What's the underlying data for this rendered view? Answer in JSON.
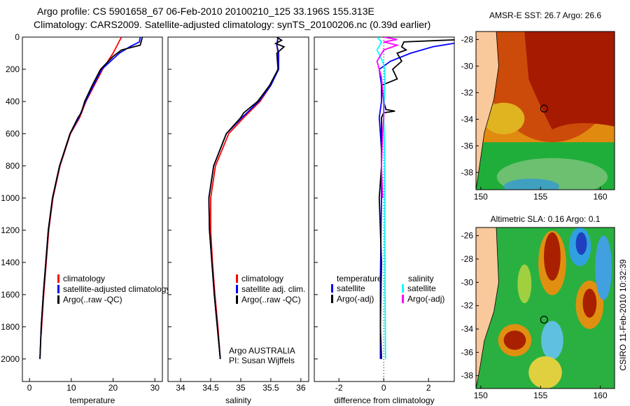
{
  "title_line1": "Argo profile: CS 5901658_67 06-Feb-2010 20100210_125 33.196S 155.313E",
  "title_line2": "Climatology: CARS2009. Satellite-adjusted climatology: synTS_20100206.nc (0.39d earlier)",
  "credit": "CSIRO 11-Feb-2010 10:32:39",
  "colors": {
    "climatology": "#ff0000",
    "satellite": "#0000ff",
    "argo": "#000000",
    "sal_satellite": "#00ffff",
    "sal_argo": "#ff00ff",
    "land": "#f9c89b"
  },
  "chart_data": [
    {
      "type": "line",
      "xlabel": "temperature",
      "ylabel": "",
      "xlim": [
        -1.7,
        31.8
      ],
      "ylim": [
        2140,
        0
      ],
      "xticks": [
        "0",
        "10",
        "20",
        "30"
      ],
      "xtickv": [
        0,
        10,
        20,
        30
      ],
      "yticks": [
        "0",
        "200",
        "400",
        "600",
        "800",
        "1000",
        "1200",
        "1400",
        "1600",
        "1800",
        "2000"
      ],
      "legend": [
        "climatology",
        "satellite-adjusted climatology",
        "Argo(..raw -QC)"
      ],
      "legend_placement": "lower-right",
      "series": [
        {
          "name": "climatology",
          "color": "#ff0000",
          "depth": [
            0,
            50,
            100,
            200,
            300,
            400,
            500,
            600,
            800,
            1000,
            1200,
            1400,
            1600,
            1800,
            1850
          ],
          "values": [
            22,
            21,
            20,
            17.5,
            15.5,
            13.5,
            12,
            9.8,
            7.3,
            5.6,
            4.6,
            4,
            3.4,
            2.9,
            2.8
          ]
        },
        {
          "name": "satellite-adjusted climatology",
          "color": "#0000ff",
          "depth": [
            0,
            30,
            60,
            100,
            200,
            300,
            400,
            500,
            600,
            800,
            1000,
            1200,
            1400,
            1600,
            1800,
            2000
          ],
          "values": [
            26.5,
            26.3,
            24,
            21.5,
            17.3,
            15.3,
            13.4,
            11.8,
            9.7,
            7.2,
            5.5,
            4.5,
            3.9,
            3.3,
            2.8,
            2.5
          ]
        },
        {
          "name": "Argo(..raw -QC)",
          "color": "#000000",
          "depth": [
            0,
            20,
            50,
            80,
            120,
            200,
            300,
            400,
            470,
            500,
            600,
            800,
            1000,
            1200,
            1400,
            1600,
            1800,
            2000
          ],
          "values": [
            27,
            26.8,
            26.5,
            22,
            20,
            17,
            15,
            13.2,
            12.4,
            11.6,
            9.7,
            7.2,
            5.5,
            4.5,
            3.9,
            3.3,
            2.8,
            2.5
          ]
        }
      ]
    },
    {
      "type": "line",
      "xlabel": "salinity",
      "ylabel": "",
      "xlim": [
        33.79,
        36.13
      ],
      "ylim": [
        2140,
        0
      ],
      "xticks": [
        "34",
        "34.5",
        "35",
        "35.5",
        "36"
      ],
      "xtickv": [
        34,
        34.5,
        35,
        35.5,
        36
      ],
      "legend": [
        "climatology",
        "satellite adj. clim.",
        "Argo(..raw -QC)"
      ],
      "legend_placement": "lower-right",
      "annotation": [
        "Argo AUSTRALIA",
        "PI: Susan Wijffels"
      ],
      "series": [
        {
          "name": "climatology",
          "color": "#ff0000",
          "depth": [
            0,
            50,
            100,
            200,
            300,
            400,
            500,
            600,
            800,
            1000,
            1200,
            1400,
            1600,
            1800,
            2000
          ],
          "values": [
            35.62,
            35.6,
            35.62,
            35.62,
            35.5,
            35.32,
            35.05,
            34.8,
            34.58,
            34.5,
            34.5,
            34.53,
            34.57,
            34.62,
            34.66
          ]
        },
        {
          "name": "satellite adj. clim.",
          "color": "#0000ff",
          "depth": [
            0,
            50,
            100,
            200,
            300,
            400,
            500,
            600,
            800,
            1000,
            1200,
            1400,
            1600,
            1800,
            2000
          ],
          "values": [
            35.62,
            35.6,
            35.63,
            35.63,
            35.5,
            35.3,
            35.02,
            34.76,
            34.55,
            34.47,
            34.48,
            34.52,
            34.56,
            34.61,
            34.66
          ]
        },
        {
          "name": "Argo(..raw -QC)",
          "color": "#000000",
          "depth": [
            0,
            20,
            40,
            60,
            100,
            200,
            300,
            400,
            470,
            500,
            600,
            800,
            1000,
            1200,
            1400,
            1600,
            1800,
            2000
          ],
          "values": [
            35.6,
            35.68,
            35.58,
            35.72,
            35.6,
            35.62,
            35.48,
            35.28,
            35.05,
            35.0,
            34.76,
            34.55,
            34.47,
            34.48,
            34.52,
            34.56,
            34.61,
            34.66
          ]
        }
      ]
    },
    {
      "type": "line",
      "xlabel": "difference from climatology",
      "ylabel": "",
      "xlim": [
        -3.1,
        3.15
      ],
      "ylim": [
        2140,
        0
      ],
      "xticks": [
        "-2",
        "0",
        "2"
      ],
      "xtickv": [
        -2,
        0,
        2
      ],
      "legend_headers": [
        "temperature",
        "salinity"
      ],
      "legend": [
        "satellite",
        "Argo(-adj)",
        "satellite",
        "Argo(-adj)"
      ],
      "legend_placement": "lower",
      "series": [
        {
          "name": "temperature satellite",
          "color": "#0000ff",
          "depth": [
            0,
            30,
            60,
            100,
            150,
            200,
            300,
            400,
            500,
            700,
            1000,
            1500,
            2000
          ],
          "values": [
            4.5,
            3.5,
            2.2,
            1.2,
            0.3,
            -0.2,
            -0.1,
            -0.1,
            -0.2,
            -0.1,
            -0.1,
            -0.15,
            -0.15
          ]
        },
        {
          "name": "temperature Argo(-adj)",
          "color": "#000000",
          "depth": [
            0,
            15,
            30,
            60,
            80,
            100,
            150,
            200,
            260,
            300,
            400,
            450,
            460,
            470,
            500,
            600,
            800,
            1000,
            1400,
            1800,
            2000
          ],
          "values": [
            4.2,
            3.5,
            0.9,
            0.8,
            1.0,
            0.6,
            0.8,
            0.4,
            0.6,
            -0.1,
            0.0,
            0.1,
            0.5,
            0.0,
            -0.1,
            -0.1,
            -0.1,
            -0.2,
            -0.1,
            -0.15,
            -0.1
          ]
        },
        {
          "name": "salinity satellite",
          "color": "#00ffff",
          "depth": [
            0,
            30,
            80,
            150,
            200,
            300,
            500,
            800,
            1200,
            1600,
            2000
          ],
          "values": [
            -0.3,
            -0.1,
            -0.3,
            -0.05,
            0.05,
            0.05,
            0.0,
            0.05,
            0.05,
            0.06,
            0.08
          ]
        },
        {
          "name": "salinity Argo(-adj)",
          "color": "#ff00ff",
          "depth": [
            0,
            15,
            30,
            50,
            80,
            150,
            250,
            400,
            500,
            600,
            800,
            1000
          ],
          "values": [
            0.0,
            0.6,
            0.0,
            0.6,
            0.0,
            -0.3,
            -0.1,
            0.0,
            0.0,
            -0.05,
            -0.1,
            -0.05
          ]
        }
      ]
    },
    {
      "type": "heatmap",
      "title": "AMSR-E SST: 26.7 Argo: 26.6",
      "xticks": [
        "150",
        "155",
        "160"
      ],
      "yticks": [
        "-28",
        "-30",
        "-32",
        "-34",
        "-36",
        "-38"
      ],
      "xlim": [
        149.6,
        161.2
      ],
      "ylim": [
        -39.3,
        -27.4
      ],
      "marker": [
        155.3,
        -33.2
      ]
    },
    {
      "type": "heatmap",
      "title": "Altimetric SLA: 0.16 Argo: 0.1",
      "xticks": [
        "150",
        "155",
        "160"
      ],
      "yticks": [
        "-26",
        "-28",
        "-30",
        "-32",
        "-34",
        "-36",
        "-38"
      ],
      "xlim": [
        149.6,
        161.2
      ],
      "ylim": [
        -39.1,
        -25.3
      ],
      "marker": [
        155.3,
        -33.2
      ]
    }
  ]
}
